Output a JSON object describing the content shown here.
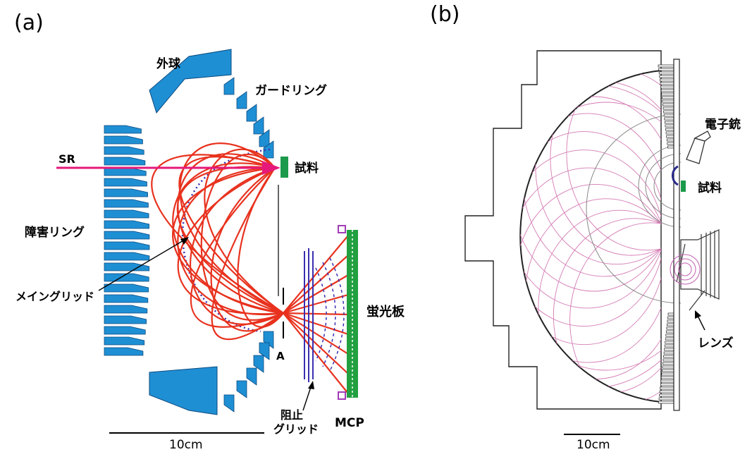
{
  "panel_a": {
    "tag": "(a)",
    "labels": {
      "outer_sphere": "外球",
      "guard_ring": "ガードリング",
      "sr": "SR",
      "sample": "試料",
      "obstacle_ring": "障害リング",
      "main_grid": "メイングリッド",
      "screen": "蛍光板",
      "aperture": "A",
      "retard_grid_1": "阻止",
      "retard_grid_2": "グリッド",
      "mcp": "MCP"
    },
    "scale": "10cm",
    "colors": {
      "electrode": "#1f8fd4",
      "trajectory": "#e8321e",
      "beam": "#e6197a",
      "grid": "#3a2fb0",
      "sample": "#1a9a4a",
      "screen": "#22a040",
      "mcp": "#a03cb4"
    }
  },
  "panel_b": {
    "tag": "(b)",
    "labels": {
      "electron_gun": "電子銃",
      "sample": "試料",
      "lens": "レンズ"
    },
    "scale": "10cm",
    "colors": {
      "trajectory": "#d47ab4",
      "outline": "#222222",
      "sample": "#1a9a4a"
    }
  }
}
